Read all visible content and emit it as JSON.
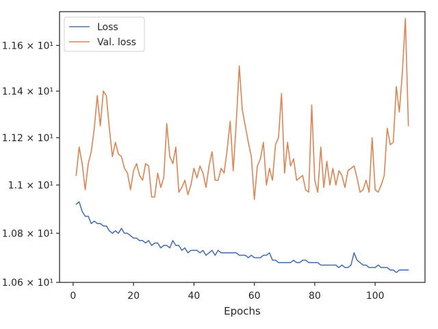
{
  "chart_data": {
    "type": "line",
    "xlabel": "Epochs",
    "ylabel": "",
    "xlim": [
      -4.5,
      116.5
    ],
    "ylim": [
      10.6,
      11.75
    ],
    "yscale": "log",
    "grid": false,
    "legend_position": "top-left",
    "x_ticks": [
      {
        "value": 0,
        "label": "0"
      },
      {
        "value": 20,
        "label": "20"
      },
      {
        "value": 40,
        "label": "40"
      },
      {
        "value": 60,
        "label": "60"
      },
      {
        "value": 80,
        "label": "80"
      },
      {
        "value": 100,
        "label": "100"
      }
    ],
    "y_ticks": [
      {
        "value": 10.6,
        "label": "1.06 × 10¹"
      },
      {
        "value": 10.8,
        "label": "1.08 × 10¹"
      },
      {
        "value": 11.0,
        "label": "1.1 × 10¹"
      },
      {
        "value": 11.2,
        "label": "1.12 × 10¹"
      },
      {
        "value": 11.4,
        "label": "1.14 × 10¹"
      },
      {
        "value": 11.6,
        "label": "1.16 × 10¹"
      }
    ],
    "series": [
      {
        "name": "Loss",
        "color": "#4c72b0",
        "values": [
          10.92,
          10.93,
          10.89,
          10.87,
          10.87,
          10.84,
          10.85,
          10.84,
          10.84,
          10.83,
          10.83,
          10.81,
          10.8,
          10.81,
          10.8,
          10.82,
          10.8,
          10.8,
          10.79,
          10.78,
          10.78,
          10.77,
          10.77,
          10.76,
          10.77,
          10.75,
          10.76,
          10.76,
          10.74,
          10.75,
          10.75,
          10.74,
          10.77,
          10.75,
          10.75,
          10.73,
          10.74,
          10.72,
          10.73,
          10.73,
          10.73,
          10.72,
          10.73,
          10.71,
          10.72,
          10.73,
          10.71,
          10.73,
          10.72,
          10.72,
          10.72,
          10.72,
          10.72,
          10.72,
          10.71,
          10.71,
          10.71,
          10.7,
          10.71,
          10.7,
          10.7,
          10.7,
          10.71,
          10.71,
          10.72,
          10.69,
          10.69,
          10.68,
          10.68,
          10.68,
          10.68,
          10.68,
          10.69,
          10.68,
          10.68,
          10.69,
          10.69,
          10.68,
          10.68,
          10.68,
          10.68,
          10.67,
          10.67,
          10.67,
          10.67,
          10.67,
          10.67,
          10.66,
          10.67,
          10.66,
          10.66,
          10.67,
          10.72,
          10.69,
          10.68,
          10.67,
          10.67,
          10.66,
          10.66,
          10.66,
          10.67,
          10.66,
          10.66,
          10.66,
          10.65,
          10.65,
          10.64,
          10.65,
          10.65,
          10.65,
          10.65
        ]
      },
      {
        "name": "Val. loss",
        "color": "#dd8452",
        "values": [
          11.04,
          11.16,
          11.09,
          10.98,
          11.09,
          11.14,
          11.24,
          11.38,
          11.25,
          11.4,
          11.38,
          11.24,
          11.12,
          11.18,
          11.13,
          11.12,
          11.07,
          11.05,
          10.98,
          11.06,
          11.09,
          11.04,
          11.02,
          11.09,
          11.08,
          10.95,
          10.95,
          11.05,
          10.99,
          11.03,
          11.26,
          11.12,
          11.09,
          11.16,
          10.97,
          10.99,
          11.02,
          10.96,
          11.0,
          11.07,
          11.03,
          11.08,
          11.05,
          10.99,
          11.08,
          11.14,
          11.02,
          11.02,
          11.07,
          11.05,
          11.15,
          11.27,
          11.06,
          11.26,
          11.51,
          11.32,
          11.25,
          11.18,
          11.12,
          10.94,
          11.08,
          11.11,
          11.18,
          11.0,
          11.07,
          11.02,
          11.17,
          11.2,
          11.39,
          11.05,
          11.18,
          11.08,
          11.11,
          11.02,
          11.03,
          11.04,
          10.98,
          10.97,
          11.34,
          11.02,
          10.97,
          11.16,
          10.99,
          11.1,
          11.0,
          11.07,
          11.0,
          11.06,
          11.04,
          10.99,
          11.06,
          11.07,
          11.08,
          11.03,
          10.97,
          10.98,
          11.02,
          10.97,
          11.2,
          10.98,
          10.97,
          11.0,
          11.04,
          11.24,
          11.17,
          11.18,
          11.42,
          11.31,
          11.48,
          11.72,
          11.25
        ]
      }
    ]
  }
}
